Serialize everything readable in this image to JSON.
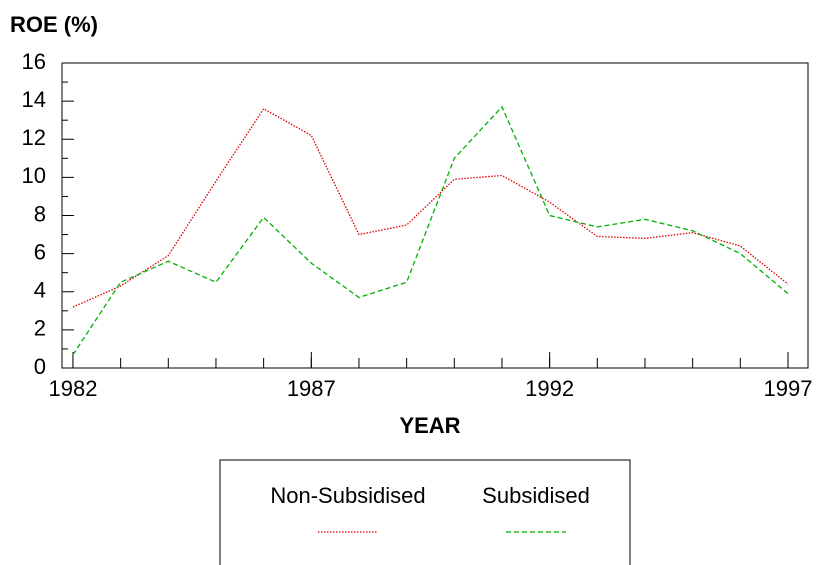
{
  "chart_data": {
    "type": "line",
    "title": "ROE (%)",
    "xlabel": "YEAR",
    "x": [
      1982,
      1983,
      1984,
      1985,
      1986,
      1987,
      1988,
      1989,
      1990,
      1991,
      1992,
      1993,
      1994,
      1995,
      1996,
      1997
    ],
    "series": [
      {
        "name": "Non-Subsidised",
        "color": "#e00000",
        "dash": "dotted",
        "values": [
          3.2,
          4.3,
          5.9,
          9.8,
          13.6,
          12.2,
          7.0,
          7.5,
          9.9,
          10.1,
          8.7,
          6.9,
          6.8,
          7.1,
          6.4,
          4.4
        ]
      },
      {
        "name": "Subsidised",
        "color": "#00b000",
        "dash": "dashed",
        "values": [
          0.7,
          4.5,
          5.6,
          4.5,
          7.9,
          5.5,
          3.7,
          4.5,
          11.0,
          13.7,
          8.0,
          7.4,
          7.8,
          7.2,
          6.0,
          3.9
        ]
      }
    ],
    "xlim": [
      1981.77,
      1997.42
    ],
    "xticks": [
      1982,
      1987,
      1992,
      1997
    ],
    "ylim": [
      0,
      16
    ],
    "yticks": [
      0,
      2,
      4,
      6,
      8,
      10,
      12,
      14,
      16
    ]
  }
}
